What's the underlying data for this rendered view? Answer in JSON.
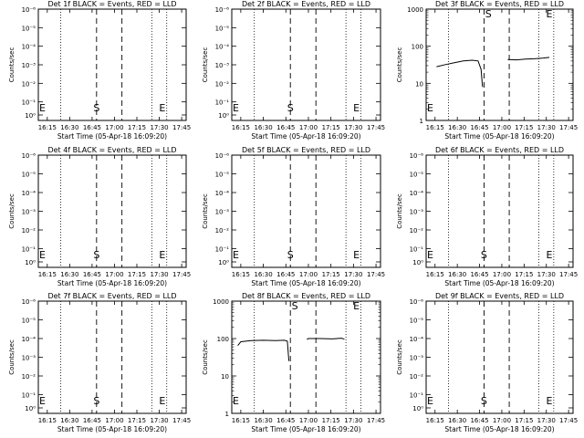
{
  "common": {
    "xlabel": "Start Time (05-Apr-18 16:09:20)",
    "ylabel": "Counts/sec",
    "xticks": [
      "16:15",
      "16:30",
      "16:45",
      "17:00",
      "17:15",
      "17:30",
      "17:45"
    ],
    "xlim": [
      "16:09",
      "17:48"
    ],
    "ylim_flat": [
      0.0001,
      1e-08
    ],
    "ylim_log": [
      1,
      1000
    ],
    "flat_yticks": [
      "10⁰",
      "10⁻¹",
      "10⁻²",
      "10⁻³",
      "10⁻⁴",
      "10⁻⁵",
      "10⁻⁶"
    ],
    "log_yticks": [
      "1",
      "10",
      "100",
      "1000"
    ],
    "markers": {
      "dotted": [
        "16:09",
        "16:24",
        "17:25",
        "17:35"
      ],
      "dashed": [
        "16:48",
        "17:05"
      ],
      "S": "16:48",
      "E": "17:32",
      "S_log": "16:51"
    }
  },
  "chart_data": [
    {
      "type": "line",
      "title": "Det 1f BLACK = Events, RED = LLD",
      "scale": "flat",
      "series": []
    },
    {
      "type": "line",
      "title": "Det 2f BLACK = Events, RED = LLD",
      "scale": "flat",
      "series": []
    },
    {
      "type": "line",
      "title": "Det 3f BLACK = Events, RED = LLD",
      "scale": "log",
      "series": [
        {
          "x": [
            "16:16",
            "16:22",
            "16:28",
            "16:34",
            "16:40",
            "16:44",
            "16:46",
            "16:47"
          ],
          "y": [
            28,
            32,
            36,
            40,
            42,
            40,
            24,
            8
          ]
        },
        {
          "x": [
            "17:04",
            "17:10",
            "17:16",
            "17:22",
            "17:28",
            "17:32"
          ],
          "y": [
            44,
            43,
            45,
            46,
            48,
            50
          ]
        }
      ]
    },
    {
      "type": "line",
      "title": "Det 4f BLACK = Events, RED = LLD",
      "scale": "flat",
      "series": []
    },
    {
      "type": "line",
      "title": "Det 5f BLACK = Events, RED = LLD",
      "scale": "flat",
      "series": []
    },
    {
      "type": "line",
      "title": "Det 6f BLACK = Events, RED = LLD",
      "scale": "flat",
      "series": []
    },
    {
      "type": "line",
      "title": "Det 7f BLACK = Events, RED = LLD",
      "scale": "flat",
      "series": []
    },
    {
      "type": "line",
      "title": "Det 8f BLACK = Events, RED = LLD",
      "scale": "log",
      "series": [
        {
          "x": [
            "16:13",
            "16:15",
            "16:22",
            "16:30",
            "16:38",
            "16:44",
            "16:46",
            "16:47"
          ],
          "y": [
            65,
            82,
            88,
            90,
            88,
            90,
            85,
            25
          ]
        },
        {
          "x": [
            "16:59",
            "17:00",
            "17:08",
            "17:16",
            "17:22",
            "17:24"
          ],
          "y": [
            95,
            100,
            100,
            98,
            102,
            96
          ]
        }
      ]
    },
    {
      "type": "line",
      "title": "Det 9f BLACK = Events, RED = LLD",
      "scale": "flat",
      "series": []
    }
  ]
}
